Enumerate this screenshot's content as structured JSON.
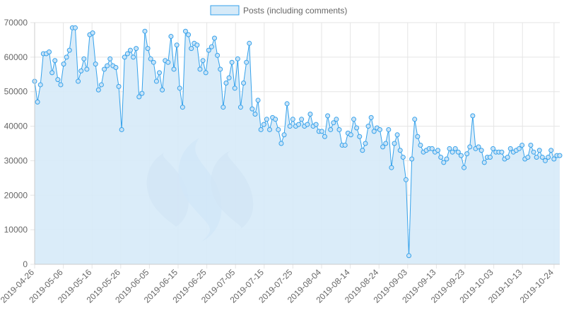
{
  "chart_data": {
    "type": "area",
    "legend": {
      "position": "top",
      "entries": [
        "Posts (including comments)"
      ]
    },
    "colors": {
      "line": "#36a2eb",
      "fill": "#d6eaf8",
      "grid": "#e5e5e5",
      "axis": "#666666"
    },
    "ylim": [
      0,
      70000
    ],
    "y_ticks": [
      0,
      10000,
      20000,
      30000,
      40000,
      50000,
      60000,
      70000
    ],
    "y_tick_labels": [
      "0",
      "10000",
      "20000",
      "30000",
      "40000",
      "50000",
      "60000",
      "70000"
    ],
    "x_start": "2019-04-26",
    "x_end": "2019-10-26",
    "x_ticks": [
      "2019-04-26",
      "2019-05-06",
      "2019-05-16",
      "2019-05-26",
      "2019-06-05",
      "2019-06-15",
      "2019-06-25",
      "2019-07-05",
      "2019-07-15",
      "2019-07-25",
      "2019-08-04",
      "2019-08-14",
      "2019-08-24",
      "2019-09-03",
      "2019-09-13",
      "2019-09-23",
      "2019-10-03",
      "2019-10-13",
      "2019-10-24"
    ],
    "grid": true,
    "series": [
      {
        "name": "Posts (including comments)",
        "values": [
          53000,
          47000,
          52000,
          61000,
          61000,
          61500,
          55500,
          59000,
          53500,
          52000,
          58000,
          60000,
          62000,
          68500,
          68500,
          53000,
          56000,
          59500,
          56500,
          66500,
          67000,
          58000,
          50500,
          52000,
          56500,
          57500,
          59500,
          57500,
          57000,
          51500,
          39000,
          60000,
          61000,
          62000,
          60000,
          62500,
          48500,
          49500,
          67500,
          62500,
          59500,
          58500,
          53000,
          55500,
          50500,
          59000,
          58500,
          66000,
          56500,
          63500,
          51000,
          45500,
          67500,
          66500,
          62500,
          64000,
          63500,
          56500,
          59000,
          55500,
          62000,
          63000,
          65500,
          60500,
          56500,
          45500,
          52500,
          54000,
          58500,
          51000,
          59500,
          45500,
          52500,
          58500,
          64000,
          45000,
          43500,
          47500,
          39000,
          40500,
          42000,
          39000,
          42500,
          42000,
          39000,
          35000,
          37500,
          46500,
          40000,
          42000,
          40000,
          40500,
          42000,
          40000,
          40500,
          43500,
          40000,
          40500,
          38500,
          38500,
          37000,
          43000,
          39000,
          41000,
          42000,
          39000,
          34500,
          34500,
          38000,
          37500,
          42000,
          39500,
          37000,
          33000,
          35000,
          40000,
          42500,
          38500,
          39500,
          39000,
          34000,
          35000,
          39000,
          28000,
          35000,
          37500,
          33000,
          31000,
          24500,
          2500,
          30500,
          42000,
          37000,
          34500,
          32500,
          33000,
          33500,
          33500,
          32500,
          33000,
          31000,
          29500,
          30500,
          33500,
          32500,
          33500,
          32500,
          31500,
          28000,
          32000,
          34000,
          43000,
          33500,
          34000,
          33000,
          29500,
          31000,
          31000,
          33500,
          32500,
          32500,
          32500,
          30500,
          31000,
          33500,
          32500,
          33000,
          33500,
          34500,
          30500,
          31000,
          34500,
          32500,
          31000,
          33000,
          31000,
          30000,
          31000,
          33000,
          30500,
          31500,
          31500
        ]
      }
    ]
  }
}
